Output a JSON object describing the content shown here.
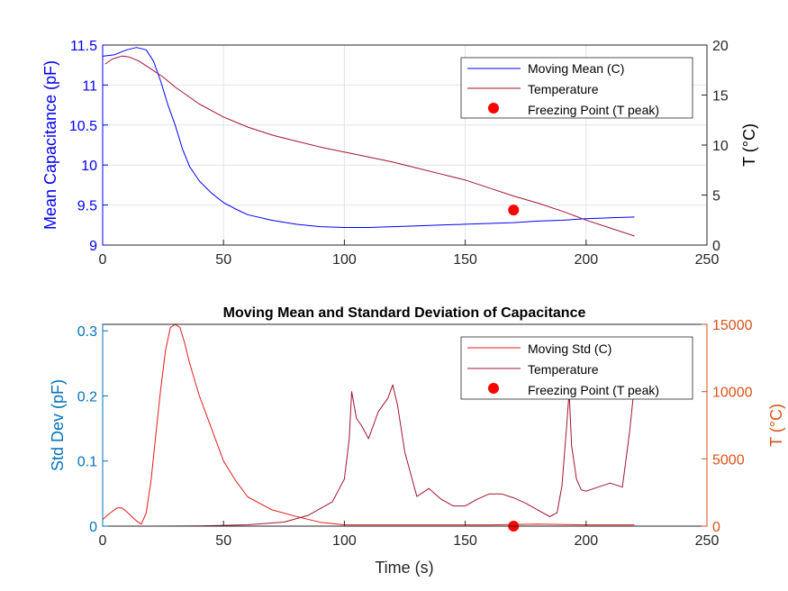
{
  "colors": {
    "mean": "#0000ff",
    "temp": "#a2142f",
    "std": "#e41a1c",
    "freeze": "#ff0000",
    "left_axis_bottom": "#0072bd",
    "right_axis_bottom": "#d95319",
    "grid": "#dfe4ee"
  },
  "chart_data": [
    {
      "type": "line",
      "title": "",
      "xlabel": "",
      "ylabel_left": "Mean Capacitance (pF)",
      "ylabel_right": "T (°C)",
      "xlim": [
        0,
        250
      ],
      "ylim_left": [
        9,
        11.5
      ],
      "ylim_right": [
        0,
        20
      ],
      "x_ticks": [
        "0",
        "50",
        "100",
        "150",
        "200",
        "250"
      ],
      "y_ticks_left": [
        "9",
        "9.5",
        "10",
        "10.5",
        "11",
        "11.5"
      ],
      "y_ticks_right": [
        "0",
        "5",
        "10",
        "15",
        "20"
      ],
      "grid": true,
      "legend_position": "top-right",
      "legend": [
        "Moving Mean (C)",
        "Temperature",
        "Freezing Point (T peak)"
      ],
      "series": [
        {
          "name": "Moving Mean (C)",
          "axis": "left",
          "x": [
            0,
            5,
            10,
            14,
            18,
            21,
            24,
            27,
            30,
            33,
            36,
            40,
            45,
            50,
            55,
            60,
            70,
            80,
            90,
            100,
            110,
            120,
            130,
            140,
            150,
            160,
            170,
            180,
            190,
            200,
            210,
            220
          ],
          "y": [
            11.36,
            11.38,
            11.44,
            11.47,
            11.44,
            11.3,
            11.05,
            10.75,
            10.5,
            10.2,
            9.98,
            9.8,
            9.65,
            9.53,
            9.45,
            9.38,
            9.31,
            9.26,
            9.23,
            9.22,
            9.22,
            9.23,
            9.24,
            9.25,
            9.26,
            9.27,
            9.28,
            9.3,
            9.31,
            9.33,
            9.34,
            9.35
          ]
        },
        {
          "name": "Temperature",
          "axis": "right",
          "x": [
            1,
            4,
            8,
            11,
            15,
            20,
            25,
            30,
            40,
            50,
            60,
            70,
            80,
            90,
            100,
            110,
            120,
            130,
            140,
            150,
            160,
            170,
            180,
            190,
            200,
            210,
            220
          ],
          "y": [
            18.1,
            18.6,
            18.9,
            18.8,
            18.4,
            17.6,
            16.8,
            15.8,
            14.1,
            12.8,
            11.8,
            11.0,
            10.4,
            9.8,
            9.3,
            8.8,
            8.3,
            7.7,
            7.1,
            6.5,
            5.7,
            4.9,
            4.2,
            3.4,
            2.5,
            1.7,
            0.9
          ]
        },
        {
          "name": "Freezing Point (T peak)",
          "axis": "right",
          "kind": "marker",
          "x": [
            170
          ],
          "y": [
            3.5
          ]
        }
      ]
    },
    {
      "type": "line",
      "title": "Moving Mean and Standard Deviation of Capacitance",
      "xlabel": "Time (s)",
      "ylabel_left": "Std Dev (pF)",
      "ylabel_right": "T (°C)",
      "xlim": [
        0,
        250
      ],
      "ylim_left": [
        0,
        0.31
      ],
      "ylim_right": [
        0,
        15000
      ],
      "x_ticks": [
        "0",
        "50",
        "100",
        "150",
        "200",
        "250"
      ],
      "y_ticks_left": [
        "0",
        "0.1",
        "0.2",
        "0.3"
      ],
      "y_ticks_right": [
        "0",
        "5000",
        "10000",
        "15000"
      ],
      "grid": false,
      "legend_position": "top-right",
      "legend": [
        "Moving Std (C)",
        "Temperature",
        "Freezing Point (T peak)"
      ],
      "series": [
        {
          "name": "Moving Std (C)",
          "axis": "left",
          "x": [
            0,
            3,
            6,
            8,
            10,
            12,
            14,
            16,
            18,
            20,
            22,
            24,
            26,
            28,
            30,
            32,
            34,
            36,
            40,
            45,
            50,
            55,
            60,
            70,
            80,
            90,
            100,
            120,
            140,
            160,
            180,
            200,
            220
          ],
          "y": [
            0.01,
            0.02,
            0.028,
            0.028,
            0.022,
            0.015,
            0.008,
            0.003,
            0.02,
            0.07,
            0.14,
            0.21,
            0.27,
            0.305,
            0.31,
            0.305,
            0.28,
            0.25,
            0.2,
            0.15,
            0.1,
            0.07,
            0.045,
            0.025,
            0.015,
            0.006,
            0.002,
            0.002,
            0.002,
            0.002,
            0.003,
            0.002,
            0.002
          ]
        },
        {
          "name": "Temperature",
          "axis": "right",
          "x": [
            0,
            10,
            20,
            40,
            60,
            75,
            85,
            95,
            100,
            102,
            103,
            105,
            107,
            110,
            112,
            114,
            116,
            118,
            120,
            122,
            125,
            130,
            135,
            140,
            145,
            150,
            155,
            160,
            165,
            170,
            175,
            180,
            185,
            188,
            190,
            192,
            193,
            194,
            196,
            198,
            200,
            205,
            210,
            215,
            218,
            220
          ],
          "y": [
            0,
            0,
            0,
            20,
            100,
            300,
            800,
            1800,
            3500,
            6500,
            10000,
            8000,
            7500,
            6500,
            7500,
            8500,
            9000,
            9500,
            10500,
            9000,
            5500,
            2200,
            2800,
            2000,
            1500,
            1500,
            2000,
            2400,
            2400,
            2100,
            1700,
            1200,
            700,
            1000,
            3000,
            7500,
            10000,
            6000,
            3500,
            2700,
            2600,
            2900,
            3200,
            2900,
            7000,
            10500
          ]
        },
        {
          "name": "Freezing Point (T peak)",
          "axis": "right",
          "kind": "marker",
          "x": [
            170
          ],
          "y": [
            0
          ]
        }
      ]
    }
  ]
}
